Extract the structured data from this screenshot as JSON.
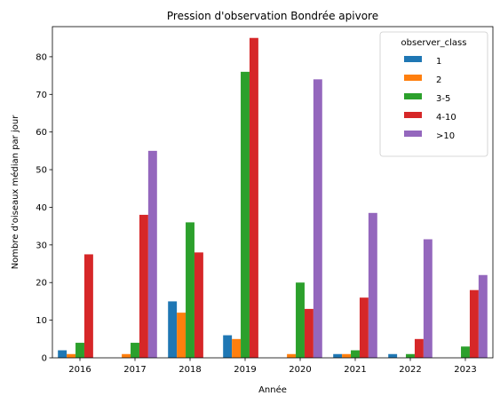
{
  "chart_data": {
    "type": "bar",
    "title": "Pression d'observation Bondrée apivore",
    "xlabel": "Année",
    "ylabel": "Nombre d'oiseaux médian par jour",
    "categories": [
      "2016",
      "2017",
      "2018",
      "2019",
      "2020",
      "2021",
      "2022",
      "2023"
    ],
    "ylim": [
      0,
      88
    ],
    "yticks": [
      0,
      10,
      20,
      30,
      40,
      50,
      60,
      70,
      80
    ],
    "grid": false,
    "legend": {
      "title": "observer_class",
      "placement": "top-right"
    },
    "series": [
      {
        "name": "1",
        "color": "#1f77b4",
        "values": [
          2,
          null,
          15,
          6,
          null,
          1,
          1,
          null
        ]
      },
      {
        "name": "2",
        "color": "#ff7f0e",
        "values": [
          1,
          1,
          12,
          5,
          1,
          1,
          null,
          null
        ]
      },
      {
        "name": "3-5",
        "color": "#2ca02c",
        "values": [
          4,
          4,
          36,
          76,
          20,
          2,
          1,
          3
        ]
      },
      {
        "name": "4-10",
        "color": "#d62728",
        "values": [
          27.5,
          38,
          28,
          85,
          13,
          16,
          5,
          18
        ]
      },
      {
        "name": ">10",
        "color": "#9467bd",
        "values": [
          null,
          55,
          null,
          null,
          74,
          38.5,
          31.5,
          22
        ]
      }
    ]
  }
}
